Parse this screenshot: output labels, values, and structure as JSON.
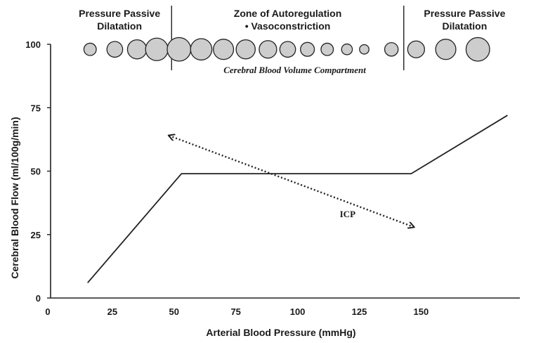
{
  "chart_data": {
    "type": "line",
    "title": "",
    "xlabel": "Arterial  Blood  Pressure  (mmHg)",
    "ylabel": "Cerebral  Blood  Flow  (ml/100g/min)",
    "xlim": [
      0,
      190
    ],
    "ylim": [
      0,
      100
    ],
    "x_ticks": [
      "0",
      "25",
      "50",
      "75",
      "100",
      "125",
      "150"
    ],
    "x_tick_values": [
      0,
      25,
      50,
      75,
      100,
      125,
      150
    ],
    "y_ticks": [
      "0",
      "25",
      "50",
      "75",
      "100"
    ],
    "y_tick_values": [
      0,
      25,
      50,
      75,
      100
    ],
    "series": [
      {
        "x": [
          15,
          53,
          146,
          185
        ],
        "y": [
          6,
          49,
          49,
          72
        ]
      }
    ],
    "zones": {
      "left": {
        "line1": "Pressure  Passive",
        "line2": "Dilatation"
      },
      "middle": {
        "line1": "Zone of Autoregulation",
        "line2": "• Vasoconstriction"
      },
      "right": {
        "line1": "Pressure  Passive",
        "line2": "Dilatation"
      },
      "boundaries_x": [
        49,
        143
      ]
    },
    "annotations": {
      "compartment_label": "Cerebral  Blood  Volume  Compartment",
      "icp_label": "ICP",
      "icp_arrow": {
        "from": [
          48,
          64
        ],
        "to": [
          147,
          28
        ]
      }
    },
    "vessel_circles_relative_size": [
      0.55,
      0.7,
      0.85,
      1.0,
      1.05,
      0.95,
      0.9,
      0.85,
      0.78,
      0.7,
      0.62,
      0.55,
      0.48,
      0.42,
      0.6,
      0.75,
      0.9,
      1.05
    ],
    "vessel_circles_x": [
      16,
      26,
      35,
      43,
      52,
      61,
      70,
      79,
      88,
      96,
      104,
      112,
      120,
      127,
      138,
      148,
      160,
      173
    ],
    "vessel_fill": "#cdcdcd",
    "line_color": "#222222"
  }
}
